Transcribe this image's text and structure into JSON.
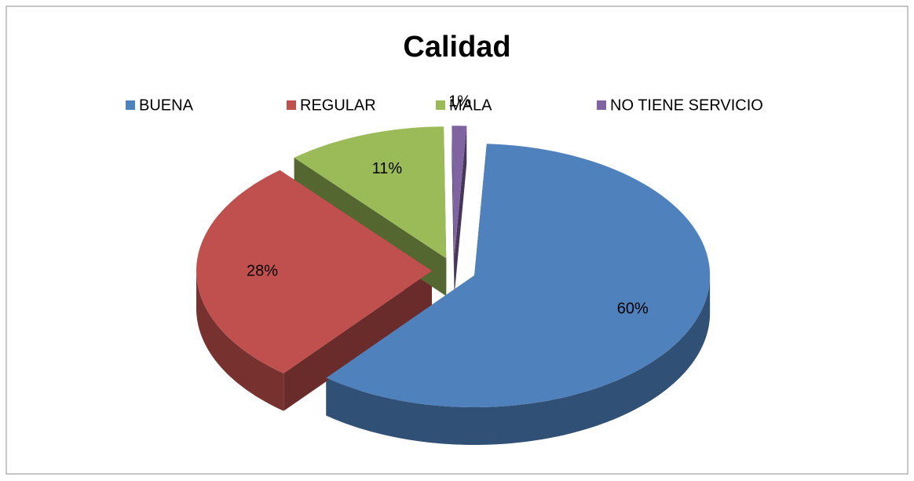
{
  "chart_data": {
    "type": "pie",
    "title": "Calidad",
    "categories": [
      "BUENA",
      "REGULAR",
      "MALA",
      "NO TIENE SERVICIO"
    ],
    "values": [
      60,
      28,
      11,
      1
    ],
    "value_labels": [
      "60%",
      "28%",
      "11%",
      "1%"
    ],
    "colors": [
      "#4f81bd",
      "#c0504d",
      "#9bbb59",
      "#8064a2"
    ],
    "legend": "top"
  }
}
